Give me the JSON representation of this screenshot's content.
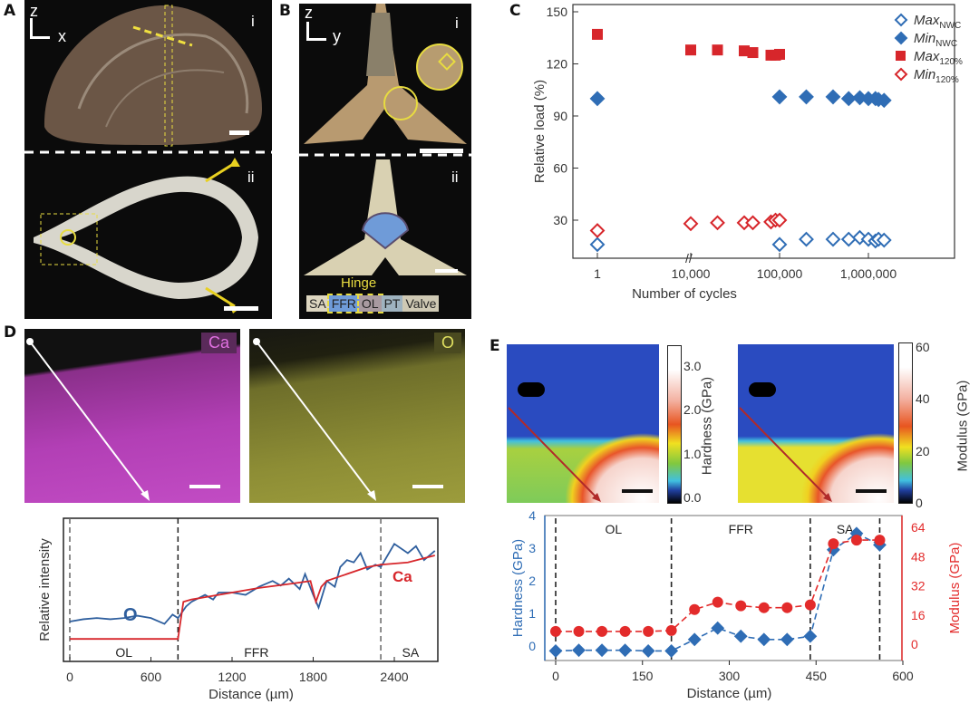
{
  "panels": {
    "A": {
      "label": "A",
      "axis_vertical": "z",
      "axis_horizontal": "x",
      "sub_i": "i",
      "sub_ii": "ii"
    },
    "B": {
      "label": "B",
      "axis_vertical": "z",
      "axis_horizontal": "y",
      "sub_i": "i",
      "sub_ii": "ii",
      "hinge_label": "Hinge",
      "legend": [
        {
          "text": "SA",
          "color": "#ddd6c0"
        },
        {
          "text": "FFR",
          "color": "#6f9bd8"
        },
        {
          "text": "OL",
          "color": "#a89aa0"
        },
        {
          "text": "PT",
          "color": "#9fb3c0"
        },
        {
          "text": "Valve",
          "color": "#cfc9b4"
        }
      ]
    },
    "C": {
      "label": "C"
    },
    "D": {
      "label": "D",
      "map_ca": "Ca",
      "map_o": "O"
    },
    "E": {
      "label": "E",
      "hardness_bar": {
        "label": "Hardness (GPa)",
        "ticks": [
          "0.0",
          "1.0",
          "2.0",
          "3.0"
        ]
      },
      "modulus_bar": {
        "label": "Modulus (GPa)",
        "ticks": [
          "0",
          "20",
          "40",
          "60"
        ]
      }
    }
  },
  "chart_data": [
    {
      "id": "C",
      "type": "scatter",
      "xlabel": "Number of cycles",
      "ylabel": "Relative load (%)",
      "xscale": "log (broken between 1 and 10,000)",
      "xticks": [
        "1",
        "10,000",
        "100,000",
        "1,000,000"
      ],
      "yticks": [
        "30",
        "60",
        "90",
        "120",
        "150"
      ],
      "ylim": [
        8,
        154
      ],
      "legend_position": "top-right",
      "series": [
        {
          "name": "Max",
          "sub": "NWC",
          "marker": "open-diamond",
          "color": "#2f6db5",
          "x": [
            1,
            100000,
            200000,
            400000,
            600000,
            800000,
            1000000,
            1200000,
            1300000,
            1500000
          ],
          "y": [
            16,
            16,
            19,
            19,
            19,
            20,
            19,
            18,
            19,
            18.5
          ]
        },
        {
          "name": "Min",
          "sub": "NWC",
          "marker": "filled-diamond",
          "color": "#2f6db5",
          "x": [
            1,
            100000,
            200000,
            400000,
            600000,
            800000,
            1000000,
            1200000,
            1300000,
            1500000
          ],
          "y": [
            100,
            101,
            101,
            101,
            100,
            100.5,
            100,
            100,
            99.5,
            99
          ]
        },
        {
          "name": "Max",
          "sub": "120%",
          "marker": "filled-square",
          "color": "#d7262b",
          "x": [
            1,
            10000,
            20000,
            40000,
            50000,
            80000,
            90000,
            100000
          ],
          "y": [
            137,
            128,
            128,
            127.5,
            126.5,
            125,
            125,
            125.5
          ]
        },
        {
          "name": "Min",
          "sub": "120%",
          "marker": "open-diamond",
          "color": "#d7262b",
          "x": [
            1,
            10000,
            20000,
            40000,
            50000,
            80000,
            90000,
            100000
          ],
          "y": [
            24,
            28,
            28.5,
            28.5,
            28.5,
            29,
            30,
            30
          ]
        }
      ]
    },
    {
      "id": "D",
      "type": "line",
      "xlabel": "Distance (µm)",
      "ylabel": "Relative intensity",
      "xticks": [
        "0",
        "600",
        "1200",
        "1800",
        "2400"
      ],
      "xlim": [
        0,
        2720
      ],
      "ylim": [
        0,
        1
      ],
      "regions": [
        "OL",
        "FFR",
        "SA"
      ],
      "boundaries": [
        0,
        800,
        2300
      ],
      "series": [
        {
          "name": "O",
          "color": "#2f5f9e",
          "x": [
            0,
            100,
            200,
            300,
            400,
            500,
            600,
            700,
            760,
            800,
            860,
            900,
            1000,
            1060,
            1100,
            1200,
            1300,
            1400,
            1500,
            1560,
            1620,
            1700,
            1740,
            1800,
            1840,
            1900,
            1960,
            2000,
            2050,
            2100,
            2150,
            2200,
            2260,
            2300,
            2400,
            2500,
            2560,
            2620,
            2700
          ],
          "y": [
            0.25,
            0.27,
            0.28,
            0.27,
            0.28,
            0.3,
            0.28,
            0.23,
            0.31,
            0.28,
            0.38,
            0.42,
            0.48,
            0.44,
            0.5,
            0.5,
            0.48,
            0.55,
            0.6,
            0.56,
            0.62,
            0.53,
            0.66,
            0.48,
            0.37,
            0.6,
            0.55,
            0.72,
            0.78,
            0.76,
            0.84,
            0.7,
            0.74,
            0.72,
            0.92,
            0.84,
            0.9,
            0.78,
            0.86
          ]
        },
        {
          "name": "Ca",
          "color": "#d7262b",
          "x": [
            0,
            780,
            800,
            840,
            900,
            1000,
            1200,
            1400,
            1600,
            1780,
            1820,
            1860,
            1900,
            2000,
            2200,
            2300,
            2500,
            2700
          ],
          "y": [
            0.1,
            0.1,
            0.1,
            0.42,
            0.44,
            0.46,
            0.5,
            0.54,
            0.57,
            0.6,
            0.42,
            0.55,
            0.6,
            0.64,
            0.72,
            0.74,
            0.76,
            0.82
          ]
        }
      ]
    },
    {
      "id": "E",
      "type": "line",
      "xlabel": "Distance (µm)",
      "ylabel_left": "Hardness (GPa)",
      "ylabel_right": "Modulus (GPa)",
      "xticks": [
        "0",
        "150",
        "300",
        "450",
        "600"
      ],
      "yticks_left": [
        "0",
        "1",
        "2",
        "3",
        "4"
      ],
      "yticks_right": [
        "0",
        "16",
        "32",
        "48",
        "64"
      ],
      "xlim": [
        -10,
        600
      ],
      "regions": [
        "OL",
        "FFR",
        "SA"
      ],
      "boundaries": [
        0,
        200,
        440,
        560
      ],
      "series": [
        {
          "name": "Hardness",
          "axis": "left",
          "marker": "diamond",
          "color": "#2f6db5",
          "x": [
            0,
            40,
            80,
            120,
            160,
            200,
            240,
            280,
            320,
            360,
            400,
            440,
            480,
            520,
            560
          ],
          "y": [
            -0.15,
            -0.13,
            -0.13,
            -0.13,
            -0.15,
            -0.15,
            0.2,
            0.55,
            0.3,
            0.2,
            0.2,
            0.3,
            2.95,
            3.45,
            3.1
          ]
        },
        {
          "name": "Modulus",
          "axis": "right",
          "marker": "circle",
          "color": "#e32b2b",
          "x": [
            0,
            40,
            80,
            120,
            160,
            200,
            240,
            280,
            320,
            360,
            400,
            440,
            480,
            520,
            560
          ],
          "y": [
            7,
            7,
            7,
            7,
            7,
            7.5,
            19,
            23,
            21,
            20,
            20,
            21.5,
            55,
            57,
            57
          ]
        }
      ]
    }
  ]
}
